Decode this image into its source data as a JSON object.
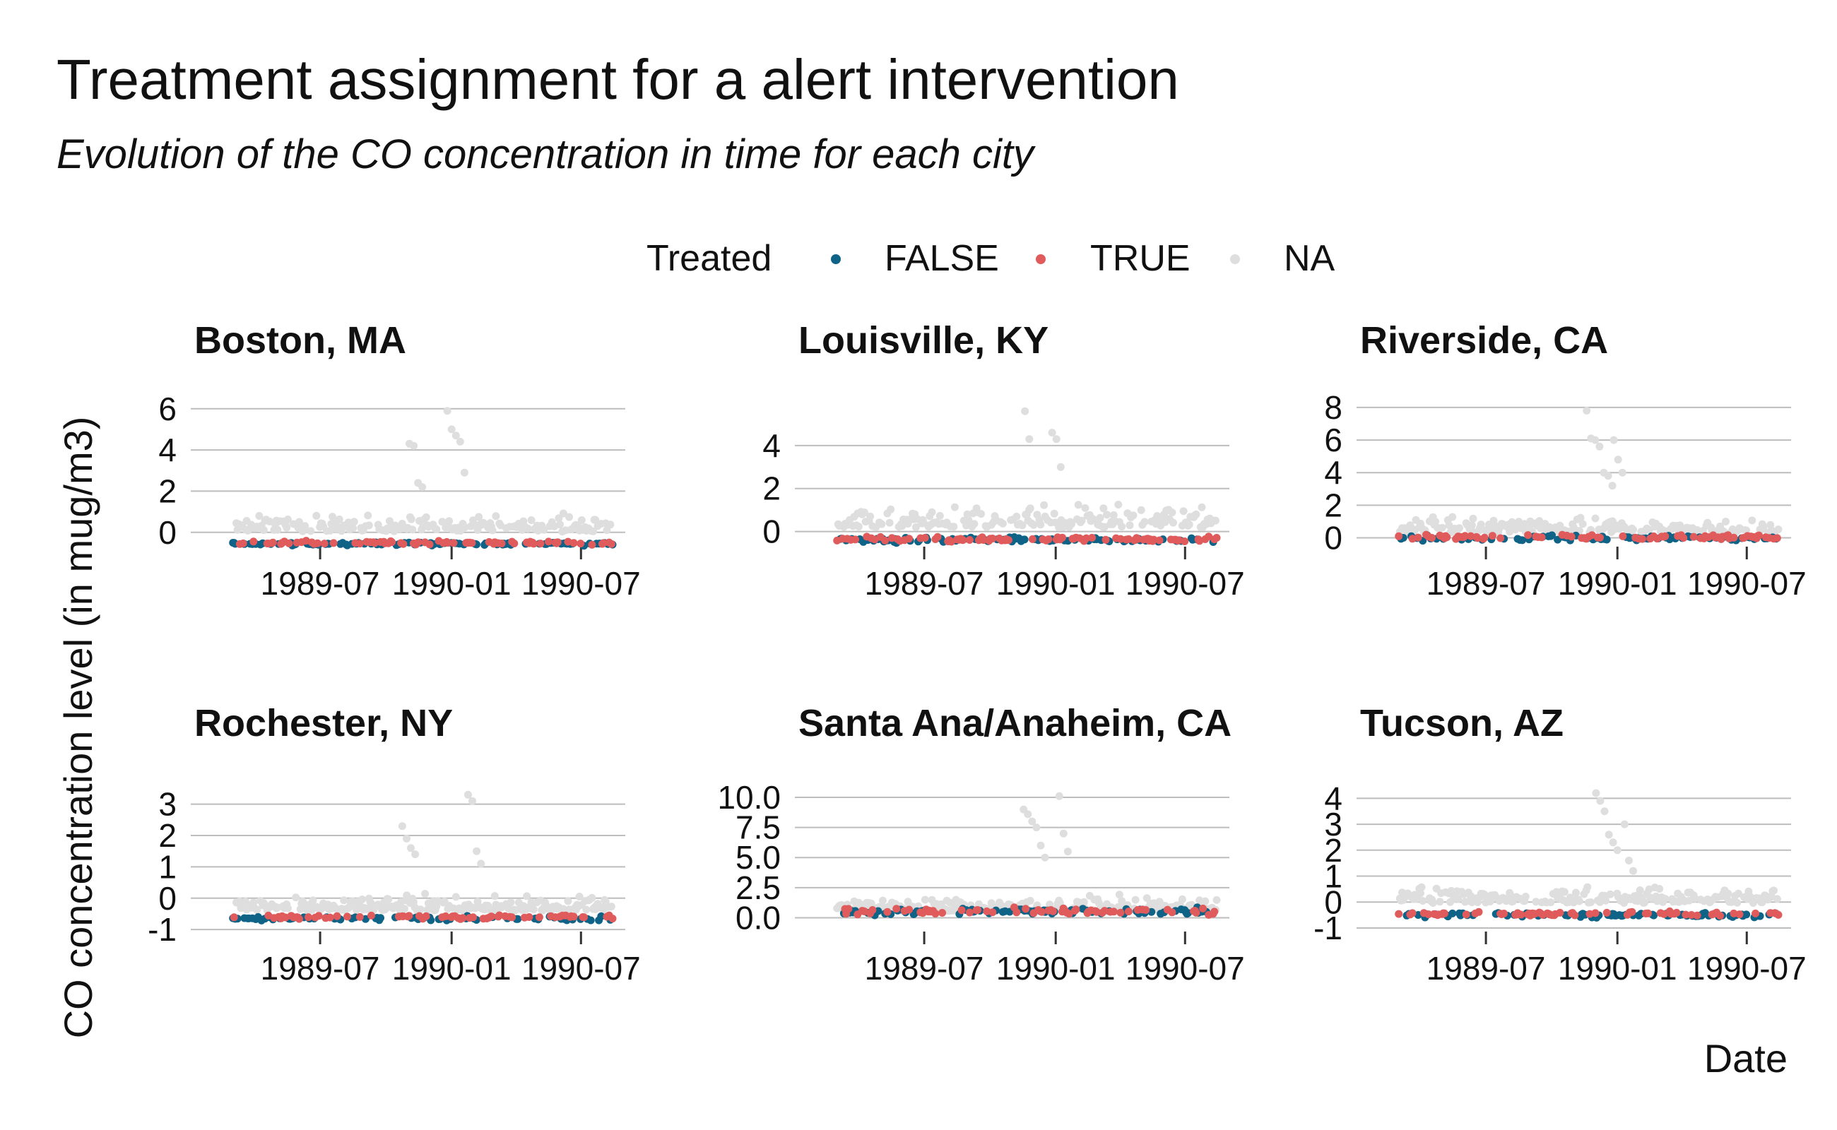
{
  "chart_data": {
    "type": "scatter",
    "title": "Treatment assignment for a alert intervention",
    "subtitle": "Evolution of the CO concentration in time for each city",
    "xlabel": "Date",
    "ylabel": "CO concentration level (in mug/m3)",
    "legend": {
      "title": "Treated",
      "placement": "top",
      "items": [
        {
          "label": "FALSE",
          "color": "#0f6387"
        },
        {
          "label": "TRUE",
          "color": "#e05b5b"
        },
        {
          "label": "NA",
          "color": "#dedede"
        }
      ]
    },
    "x_range": [
      "1989-01-01",
      "1990-09-01"
    ],
    "x_ticks": [
      "1989-07",
      "1990-01",
      "1990-07"
    ],
    "facets": [
      {
        "title": "Boston, MA",
        "ylim": [
          -0.9,
          6.3
        ],
        "yticks": [
          "0",
          "2",
          "4",
          "6"
        ],
        "ytick_values": [
          0,
          2,
          4,
          6
        ],
        "baseline": -0.55,
        "baseline_spread": 0.08,
        "na_base": 0.2,
        "na_spread": 1.1,
        "na_peaks": [
          {
            "date": "1989-11-15",
            "values": [
              4.3,
              4.2,
              2.4,
              2.2
            ]
          },
          {
            "date": "1990-01-10",
            "values": [
              5.9,
              5.0,
              4.7,
              4.4,
              2.9
            ]
          }
        ]
      },
      {
        "title": "Louisville, KY",
        "ylim": [
          -0.9,
          6.0
        ],
        "yticks": [
          "0",
          "2",
          "4"
        ],
        "ytick_values": [
          0,
          2,
          4
        ],
        "baseline": -0.4,
        "baseline_spread": 0.12,
        "na_base": 0.4,
        "na_spread": 1.4,
        "na_peaks": [
          {
            "date": "1989-11-25",
            "values": [
              5.6,
              4.3
            ]
          },
          {
            "date": "1990-01-05",
            "values": [
              4.6,
              4.3,
              3.0
            ]
          }
        ]
      },
      {
        "title": "Riverside, CA",
        "ylim": [
          -0.8,
          8.3
        ],
        "yticks": [
          "0",
          "2",
          "4",
          "6",
          "8"
        ],
        "ytick_values": [
          0,
          2,
          4,
          6,
          8
        ],
        "baseline": 0.0,
        "baseline_spread": 0.15,
        "na_base": 0.5,
        "na_spread": 1.3,
        "na_peaks": [
          {
            "date": "1989-12-10",
            "values": [
              7.8,
              6.1,
              6.0,
              5.6,
              4.0,
              3.8,
              3.2
            ]
          },
          {
            "date": "1990-01-05",
            "values": [
              6.0,
              4.8,
              4.0
            ]
          }
        ]
      },
      {
        "title": "Rochester, NY",
        "ylim": [
          -1.2,
          3.6
        ],
        "yticks": [
          "3",
          "2",
          "1",
          "0",
          "-1"
        ],
        "ytick_values": [
          3,
          2,
          1,
          0,
          -1
        ],
        "baseline": -0.65,
        "baseline_spread": 0.06,
        "na_base": -0.3,
        "na_spread": 0.6,
        "na_peaks": [
          {
            "date": "1989-11-05",
            "values": [
              2.3,
              1.9,
              1.6,
              1.4
            ]
          },
          {
            "date": "1990-02-05",
            "values": [
              3.3,
              3.1,
              1.5,
              1.1
            ]
          }
        ]
      },
      {
        "title": "Santa Ana/Anaheim, CA",
        "ylim": [
          -1.5,
          11.0
        ],
        "yticks": [
          "10.0",
          "7.5",
          "5.0",
          "2.5",
          "0.0"
        ],
        "ytick_values": [
          10,
          7.5,
          5,
          2.5,
          0
        ],
        "baseline": 0.5,
        "baseline_spread": 0.25,
        "na_base": 0.8,
        "na_spread": 1.6,
        "na_peaks": [
          {
            "date": "1989-12-05",
            "values": [
              9.0,
              8.6,
              8.0,
              7.5,
              6.0,
              5.0
            ]
          },
          {
            "date": "1990-01-15",
            "values": [
              10.1,
              7.0,
              5.5
            ]
          }
        ]
      },
      {
        "title": "Tucson, AZ",
        "ylim": [
          -1.3,
          4.5
        ],
        "yticks": [
          "4",
          "3",
          "2",
          "1",
          "0",
          "-1"
        ],
        "ytick_values": [
          4,
          3,
          2,
          1,
          0,
          -1
        ],
        "baseline": -0.5,
        "baseline_spread": 0.08,
        "na_base": 0.1,
        "na_spread": 0.9,
        "na_peaks": [
          {
            "date": "1989-12-20",
            "values": [
              4.2,
              3.9,
              3.5,
              2.6,
              2.3,
              2.0
            ]
          },
          {
            "date": "1990-01-20",
            "values": [
              3.0,
              1.6,
              1.2
            ]
          }
        ]
      }
    ]
  }
}
